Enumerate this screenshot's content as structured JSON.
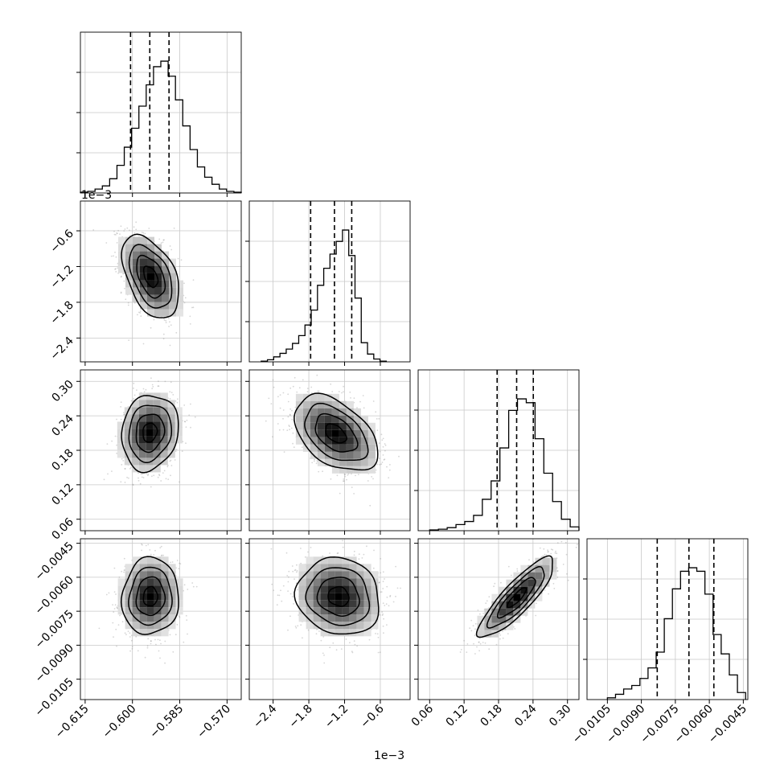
{
  "chart_data": {
    "type": "corner",
    "parameters": [
      {
        "ticks": [
          -0.615,
          -0.6,
          -0.585,
          -0.57
        ],
        "tick_labels": [
          "−0.615",
          "−0.600",
          "−0.585",
          "−0.570"
        ],
        "range": [
          -0.6165,
          -0.5655
        ],
        "quantiles": [
          -0.6006,
          -0.5945,
          -0.5884
        ],
        "hist_counts": [
          1,
          2,
          5,
          9,
          18,
          35,
          58,
          82,
          110,
          137,
          160,
          167,
          148,
          118,
          85,
          55,
          33,
          20,
          11,
          5,
          2,
          1
        ],
        "hist_range": [
          -0.6165,
          -0.5655
        ]
      },
      {
        "ticks": [
          -2.4,
          -1.8,
          -1.2,
          -0.6
        ],
        "tick_labels": [
          "−2.4",
          "−1.8",
          "−1.2",
          "−0.6"
        ],
        "offset_label": "1e−3",
        "range": [
          -2.8,
          -0.1
        ],
        "quantiles": [
          -1.77,
          -1.37,
          -1.08
        ],
        "hist_counts": [
          1,
          3,
          7,
          12,
          18,
          26,
          37,
          52,
          73,
          108,
          132,
          152,
          170,
          186,
          150,
          90,
          27,
          11,
          4,
          1
        ],
        "hist_range": [
          -2.6,
          -0.5
        ]
      },
      {
        "ticks": [
          0.06,
          0.12,
          0.18,
          0.24,
          0.3
        ],
        "tick_labels": [
          "0.06",
          "0.12",
          "0.18",
          "0.24",
          "0.30"
        ],
        "offset_label": "1e−3",
        "range": [
          0.04,
          0.32
        ],
        "quantiles": [
          0.1775,
          0.2115,
          0.2405
        ],
        "hist_counts": [
          1,
          2,
          4,
          8,
          12,
          20,
          41,
          65,
          108,
          157,
          172,
          167,
          120,
          75,
          38,
          15,
          5
        ],
        "hist_range": [
          0.06,
          0.32
        ]
      },
      {
        "ticks": [
          -0.0105,
          -0.009,
          -0.0075,
          -0.006,
          -0.0045
        ],
        "tick_labels": [
          "−0.0105",
          "−0.0090",
          "−0.0075",
          "−0.0060",
          "−0.0045"
        ],
        "range": [
          -0.0114,
          -0.0043
        ],
        "quantiles": [
          -0.0083,
          -0.0069,
          -0.0058
        ],
        "hist_counts": [
          1,
          3,
          6,
          8,
          12,
          18,
          27,
          46,
          63,
          73,
          75,
          73,
          60,
          37,
          26,
          14,
          4
        ],
        "hist_range": [
          -0.0105,
          -0.0044
        ]
      }
    ],
    "pairs": [
      {
        "row": 1,
        "col": 0,
        "mean": [
          -0.5942,
          -1.37
        ],
        "sd": [
          0.0045,
          0.35
        ],
        "rho": -0.45
      },
      {
        "row": 2,
        "col": 0,
        "mean": [
          -0.5945,
          0.211
        ],
        "sd": [
          0.0045,
          0.033
        ],
        "rho": 0.12
      },
      {
        "row": 2,
        "col": 1,
        "mean": [
          -1.35,
          0.209
        ],
        "sd": [
          0.35,
          0.033
        ],
        "rho": -0.45
      },
      {
        "row": 3,
        "col": 0,
        "mean": [
          -0.5943,
          -0.00685
        ],
        "sd": [
          0.0045,
          0.00085
        ],
        "rho": 0.05
      },
      {
        "row": 3,
        "col": 1,
        "mean": [
          -1.3,
          -0.00685
        ],
        "sd": [
          0.35,
          0.00085
        ],
        "rho": -0.1
      },
      {
        "row": 3,
        "col": 2,
        "mean": [
          0.212,
          -0.0069
        ],
        "sd": [
          0.033,
          0.00088
        ],
        "rho": 0.86
      }
    ],
    "hist_ylim_fraction": 1.22,
    "grid": true,
    "quantile_line_style": "dashed",
    "density_style": "grayscale 2D histogram with scatter points and contour lines"
  }
}
